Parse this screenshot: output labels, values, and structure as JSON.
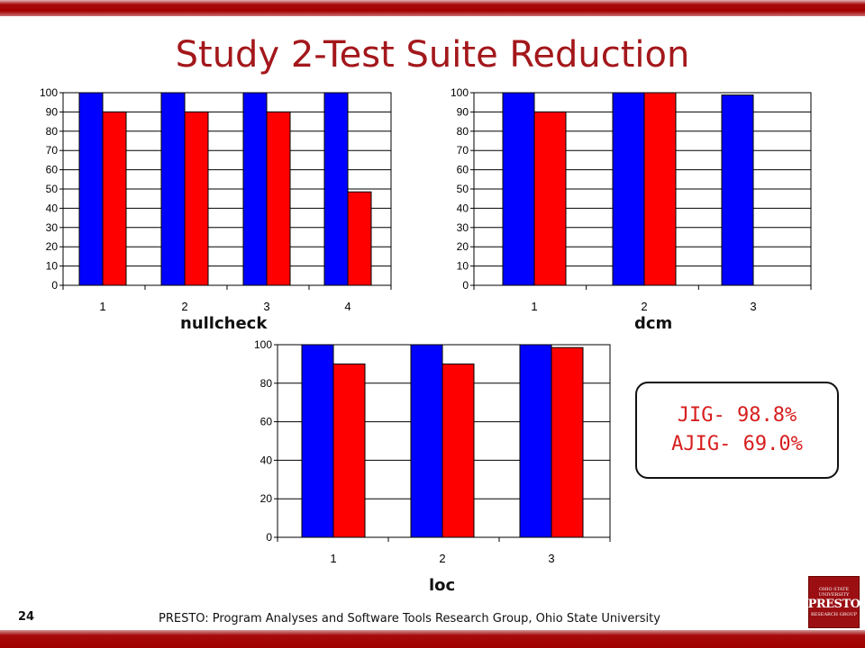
{
  "title": "Study 2-Test Suite Reduction",
  "colors": {
    "series_a": "#0000ff",
    "series_b": "#ff0000",
    "title": "#a3171b",
    "callout_text": "#d71e1e",
    "band": "#a30000"
  },
  "chart_data": [
    {
      "type": "bar",
      "caption": "nullcheck",
      "categories": [
        "1",
        "2",
        "3",
        "4"
      ],
      "series": [
        {
          "values": [
            100,
            100,
            100,
            100
          ]
        },
        {
          "values": [
            90,
            90,
            90,
            48.5
          ]
        }
      ],
      "ylim": [
        0,
        100
      ],
      "yticks": [
        0,
        10,
        20,
        30,
        40,
        50,
        60,
        70,
        80,
        90,
        100
      ],
      "grid": true
    },
    {
      "type": "bar",
      "caption": "dcm",
      "categories": [
        "1",
        "2",
        "3"
      ],
      "series": [
        {
          "values": [
            100,
            100,
            98.8
          ]
        },
        {
          "values": [
            90,
            100,
            null
          ]
        }
      ],
      "ylim": [
        0,
        100
      ],
      "yticks": [
        0,
        10,
        20,
        30,
        40,
        50,
        60,
        70,
        80,
        90,
        100
      ],
      "grid": true
    },
    {
      "type": "bar",
      "caption": "loc",
      "categories": [
        "1",
        "2",
        "3"
      ],
      "series": [
        {
          "values": [
            100,
            100,
            100
          ]
        },
        {
          "values": [
            90,
            90,
            98.5
          ]
        }
      ],
      "ylim": [
        0,
        100
      ],
      "yticks": [
        0,
        20,
        40,
        60,
        80,
        100
      ],
      "grid": true
    }
  ],
  "callout": {
    "line1": "JIG- 98.8%",
    "line2": "AJIG- 69.0%"
  },
  "footer": {
    "slide_number": "24",
    "text": "PRESTO: Program Analyses and Software Tools Research Group, Ohio State University"
  },
  "logo": {
    "line1": "OHIO STATE UNIVERSITY",
    "line2": "PRESTO",
    "line3": "RESEARCH GROUP"
  }
}
